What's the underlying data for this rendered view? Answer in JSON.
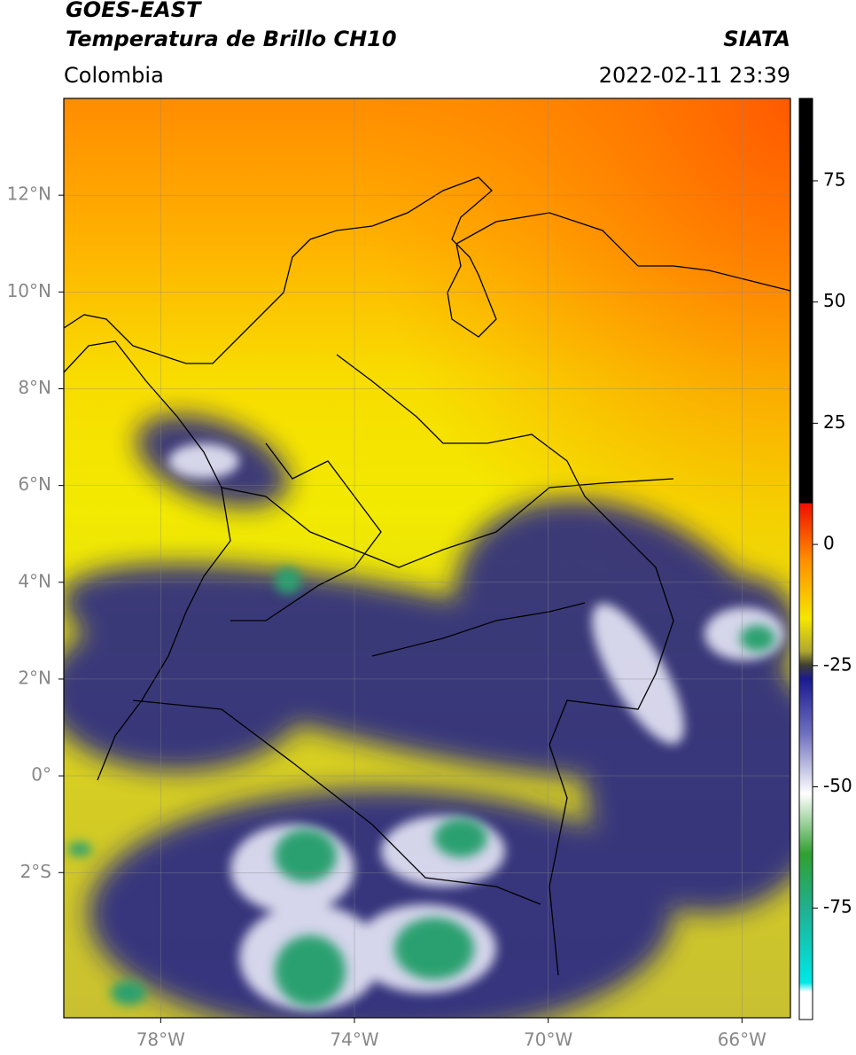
{
  "header": {
    "title": "GOES-EAST",
    "subtitle": "Temperatura de Brillo CH10",
    "region": "Colombia",
    "source": "SIATA",
    "datetime": "2022-02-11 23:39"
  },
  "map": {
    "xlim": [
      -80,
      -65
    ],
    "ylim": [
      -5,
      14
    ],
    "xticks": [
      {
        "value": -78,
        "label": "78°W"
      },
      {
        "value": -74,
        "label": "74°W"
      },
      {
        "value": -70,
        "label": "70°W"
      },
      {
        "value": -66,
        "label": "66°W"
      }
    ],
    "yticks": [
      {
        "value": 12,
        "label": "12°N"
      },
      {
        "value": 10,
        "label": "10°N"
      },
      {
        "value": 8,
        "label": "8°N"
      },
      {
        "value": 6,
        "label": "6°N"
      },
      {
        "value": 4,
        "label": "4°N"
      },
      {
        "value": 2,
        "label": "2°N"
      },
      {
        "value": 0,
        "label": "0°"
      },
      {
        "value": -2,
        "label": "2°S"
      }
    ],
    "grid": true
  },
  "colorbar": {
    "lim": [
      -98,
      92
    ],
    "ticks": [
      75,
      50,
      25,
      0,
      -25,
      -50,
      -75
    ]
  }
}
